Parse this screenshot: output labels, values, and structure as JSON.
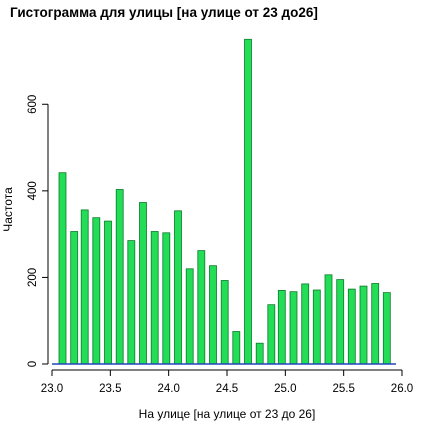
{
  "chart_data": {
    "type": "bar",
    "title": "Гистограмма для улицы [на улице от 23 до26]",
    "xlabel": "На улице [на улице от 23 до 26]",
    "ylabel": "Частота",
    "xlim": [
      23.0,
      26.0
    ],
    "ylim": [
      0,
      760
    ],
    "x_ticks": [
      23.0,
      23.5,
      24.0,
      24.5,
      25.0,
      25.5,
      26.0
    ],
    "x_tick_labels": [
      "23.0",
      "23.5",
      "24.0",
      "24.5",
      "25.0",
      "25.5",
      "26.0"
    ],
    "y_ticks": [
      0,
      200,
      400,
      600
    ],
    "y_tick_labels": [
      "0",
      "200",
      "400",
      "600"
    ],
    "bar_color": "#22dd55",
    "bar_stroke": "#0c7a2c",
    "baseline_color": "#2244bb",
    "bins": [
      {
        "x": 23.09,
        "value": 442
      },
      {
        "x": 23.19,
        "value": 306
      },
      {
        "x": 23.28,
        "value": 356
      },
      {
        "x": 23.38,
        "value": 338
      },
      {
        "x": 23.48,
        "value": 330
      },
      {
        "x": 23.58,
        "value": 403
      },
      {
        "x": 23.68,
        "value": 285
      },
      {
        "x": 23.78,
        "value": 373
      },
      {
        "x": 23.88,
        "value": 306
      },
      {
        "x": 23.98,
        "value": 303
      },
      {
        "x": 24.08,
        "value": 354
      },
      {
        "x": 24.18,
        "value": 220
      },
      {
        "x": 24.28,
        "value": 262
      },
      {
        "x": 24.38,
        "value": 227
      },
      {
        "x": 24.48,
        "value": 193
      },
      {
        "x": 24.58,
        "value": 75
      },
      {
        "x": 24.68,
        "value": 750
      },
      {
        "x": 24.78,
        "value": 48
      },
      {
        "x": 24.88,
        "value": 137
      },
      {
        "x": 24.97,
        "value": 170
      },
      {
        "x": 25.07,
        "value": 167
      },
      {
        "x": 25.17,
        "value": 185
      },
      {
        "x": 25.27,
        "value": 171
      },
      {
        "x": 25.37,
        "value": 206
      },
      {
        "x": 25.47,
        "value": 195
      },
      {
        "x": 25.57,
        "value": 173
      },
      {
        "x": 25.67,
        "value": 180
      },
      {
        "x": 25.77,
        "value": 186
      },
      {
        "x": 25.87,
        "value": 165
      }
    ]
  }
}
